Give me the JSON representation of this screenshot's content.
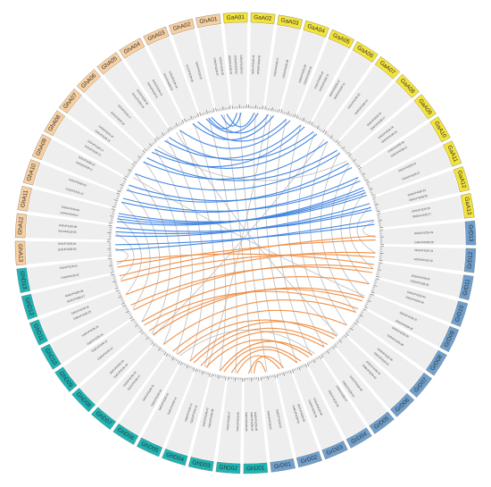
{
  "colors": {
    "ga": "#f3e33a",
    "gh_a": "#f7cfa0",
    "gh_d": "#1fb4b4",
    "gr": "#6f9fcc",
    "band": "#eeeeee",
    "link_blue": "#3b82e0",
    "link_orange": "#f08a3e",
    "link_gray": "#bcbcbc"
  },
  "chromosomes": [
    {
      "id": "GaA01",
      "group": "ga"
    },
    {
      "id": "GaA02",
      "group": "ga"
    },
    {
      "id": "GaA03",
      "group": "ga"
    },
    {
      "id": "GaA04",
      "group": "ga"
    },
    {
      "id": "GaA05",
      "group": "ga"
    },
    {
      "id": "GaA06",
      "group": "ga"
    },
    {
      "id": "GaA07",
      "group": "ga"
    },
    {
      "id": "GaA08",
      "group": "ga"
    },
    {
      "id": "GaA09",
      "group": "ga"
    },
    {
      "id": "GaA10",
      "group": "ga"
    },
    {
      "id": "GaA11",
      "group": "ga"
    },
    {
      "id": "GaA12",
      "group": "ga"
    },
    {
      "id": "GaA13",
      "group": "ga"
    },
    {
      "id": "GrD13",
      "group": "gr"
    },
    {
      "id": "GrD12",
      "group": "gr"
    },
    {
      "id": "GrD11",
      "group": "gr"
    },
    {
      "id": "GrD10",
      "group": "gr"
    },
    {
      "id": "GrD09",
      "group": "gr"
    },
    {
      "id": "GrD08",
      "group": "gr"
    },
    {
      "id": "GrD07",
      "group": "gr"
    },
    {
      "id": "GrD06",
      "group": "gr"
    },
    {
      "id": "GrD05",
      "group": "gr"
    },
    {
      "id": "GrD04",
      "group": "gr"
    },
    {
      "id": "GrD03",
      "group": "gr"
    },
    {
      "id": "GrD02",
      "group": "gr"
    },
    {
      "id": "GrD01",
      "group": "gr"
    },
    {
      "id": "GhD01",
      "group": "gh_d"
    },
    {
      "id": "GhD02",
      "group": "gh_d"
    },
    {
      "id": "GhD03",
      "group": "gh_d"
    },
    {
      "id": "GhD04",
      "group": "gh_d"
    },
    {
      "id": "GhD05",
      "group": "gh_d"
    },
    {
      "id": "GhD06",
      "group": "gh_d"
    },
    {
      "id": "GhD07",
      "group": "gh_d"
    },
    {
      "id": "GhD08",
      "group": "gh_d"
    },
    {
      "id": "GhD09",
      "group": "gh_d"
    },
    {
      "id": "GhD10",
      "group": "gh_d"
    },
    {
      "id": "GhD11",
      "group": "gh_d"
    },
    {
      "id": "GhD12",
      "group": "gh_d"
    },
    {
      "id": "GhD13",
      "group": "gh_d"
    },
    {
      "id": "GhA13",
      "group": "gh_a"
    },
    {
      "id": "GhA12",
      "group": "gh_a"
    },
    {
      "id": "GhA11",
      "group": "gh_a"
    },
    {
      "id": "GhA10",
      "group": "gh_a"
    },
    {
      "id": "GhA09",
      "group": "gh_a"
    },
    {
      "id": "GhA08",
      "group": "gh_a"
    },
    {
      "id": "GhA07",
      "group": "gh_a"
    },
    {
      "id": "GhA06",
      "group": "gh_a"
    },
    {
      "id": "GhA05",
      "group": "gh_a"
    },
    {
      "id": "GhA04",
      "group": "gh_a"
    },
    {
      "id": "GhA03",
      "group": "gh_a"
    },
    {
      "id": "GhA02",
      "group": "gh_a"
    },
    {
      "id": "GhA01",
      "group": "gh_a"
    }
  ],
  "gene_labels": [
    "GhDUF4228-01",
    "GhDUF4228-02",
    "GhDUF4228-03",
    "GhDUF4228-04",
    "GhDUF4228-05",
    "GhDUF4228-06",
    "GhDUF4228-07",
    "GhDUF4228-08",
    "GhDUF4228-09",
    "GhDUF4228-10",
    "GhDUF4228-11",
    "GhDUF4228-12",
    "GhDUF4228-13",
    "GhDUF4228-14",
    "GhDUF4228-15",
    "GhDUF4228-16",
    "GhDUF4228-17",
    "GhDUF4228-18",
    "GhDUF4228-19",
    "GhDUF4228-20",
    "GhDUF4228-21",
    "GhDUF4228-22",
    "GhDUF4228-23",
    "GhDUF4228-24",
    "GhDUF4228-25",
    "GhDUF4228-26",
    "GhDUF4228-27",
    "GhDUF4228-28",
    "GhDUF4228-29",
    "GhDUF4228-30",
    "GhDUF4228-31",
    "GhDUF4228-32",
    "GhDUF4228-33",
    "GhDUF4228-34",
    "GhDUF4228-35",
    "GhDUF4228-36",
    "GhDUF4228-37",
    "GhDUF4228-38",
    "GhDUF4228-39",
    "GhDUF4228-40",
    "GhDUF4228-41",
    "GhDUF4228-42",
    "GhDUF4228-43",
    "GhDUF4228-44",
    "GhDUF4228-45",
    "GhDUF4228-46",
    "GhDUF4228-47",
    "GhDUF4228-48",
    "GhDUF4228-49",
    "GhDUF4228-50",
    "GaDUF4228-01",
    "GaDUF4228-02",
    "GaDUF4228-03",
    "GaDUF4228-04",
    "GaDUF4228-05",
    "GaDUF4228-06",
    "GaDUF4228-07",
    "GaDUF4228-08",
    "GaDUF4228-09",
    "GaDUF4228-10",
    "GaDUF4228-11",
    "GaDUF4228-12",
    "GaDUF4228-13",
    "GaDUF4228-14",
    "GaDUF4228-15",
    "GaDUF4228-16",
    "GaDUF4228-17",
    "GaDUF4228-18",
    "GaDUF4228-19",
    "GaDUF4228-20",
    "GaDUF4228-21",
    "GaDUF4228-22",
    "GaDUF4228-23",
    "GaDUF4228-24",
    "GaDUF4228-25",
    "GaDUF4228-26",
    "GaDUF4228-27",
    "GaDUF4228-28",
    "GrDUF4228-01",
    "GrDUF4228-02",
    "GrDUF4228-03",
    "GrDUF4228-04",
    "GrDUF4228-05",
    "GrDUF4228-06",
    "GrDUF4228-07",
    "GrDUF4228-08",
    "GrDUF4228-09",
    "GrDUF4228-10",
    "GrDUF4228-11",
    "GrDUF4228-12",
    "GrDUF4228-13",
    "GrDUF4228-14",
    "GrDUF4228-15",
    "GrDUF4228-16",
    "GrDUF4228-17",
    "GrDUF4228-18",
    "GrDUF4228-19",
    "GrDUF4228-20",
    "GrDUF4228-21",
    "GrDUF4228-22",
    "GrDUF4228-23",
    "GrDUF4228-24",
    "GrDUF4228-25",
    "GrDUF4228-26",
    "GrDUF4228-27",
    "GrDUF4228-28"
  ],
  "links": [
    {
      "type": "blue",
      "from": [
        "GhA01",
        0.3
      ],
      "to": [
        "GaA01",
        0.6
      ]
    },
    {
      "type": "blue",
      "from": [
        "GhA01",
        0.7
      ],
      "to": [
        "GaA02",
        0.4
      ]
    },
    {
      "type": "blue",
      "from": [
        "GhA02",
        0.3
      ],
      "to": [
        "GaA02",
        0.7
      ]
    },
    {
      "type": "blue",
      "from": [
        "GhA02",
        0.7
      ],
      "to": [
        "GaA03",
        0.3
      ]
    },
    {
      "type": "blue",
      "from": [
        "GhA03",
        0.4
      ],
      "to": [
        "GaA03",
        0.7
      ]
    },
    {
      "type": "blue",
      "from": [
        "GhA03",
        0.8
      ],
      "to": [
        "GaA04",
        0.5
      ]
    },
    {
      "type": "blue",
      "from": [
        "GhA04",
        0.5
      ],
      "to": [
        "GaA04",
        0.8
      ]
    },
    {
      "type": "blue",
      "from": [
        "GhA05",
        0.3
      ],
      "to": [
        "GaA05",
        0.5
      ]
    },
    {
      "type": "blue",
      "from": [
        "GhA05",
        0.7
      ],
      "to": [
        "GaA06",
        0.4
      ]
    },
    {
      "type": "blue",
      "from": [
        "GhA06",
        0.5
      ],
      "to": [
        "GaA06",
        0.7
      ]
    },
    {
      "type": "blue",
      "from": [
        "GhA07",
        0.4
      ],
      "to": [
        "GaA07",
        0.5
      ]
    },
    {
      "type": "blue",
      "from": [
        "GhA07",
        0.8
      ],
      "to": [
        "GaA08",
        0.3
      ]
    },
    {
      "type": "blue",
      "from": [
        "GhA08",
        0.5
      ],
      "to": [
        "GaA08",
        0.6
      ]
    },
    {
      "type": "blue",
      "from": [
        "GhA09",
        0.3
      ],
      "to": [
        "GaA09",
        0.4
      ]
    },
    {
      "type": "blue",
      "from": [
        "GhA09",
        0.7
      ],
      "to": [
        "GaA09",
        0.8
      ]
    },
    {
      "type": "blue",
      "from": [
        "GhA10",
        0.5
      ],
      "to": [
        "GaA10",
        0.5
      ]
    },
    {
      "type": "blue",
      "from": [
        "GhA11",
        0.2
      ],
      "to": [
        "GaA11",
        0.2
      ]
    },
    {
      "type": "blue",
      "from": [
        "GhA11",
        0.4
      ],
      "to": [
        "GaA11",
        0.4
      ]
    },
    {
      "type": "blue",
      "from": [
        "GhA11",
        0.6
      ],
      "to": [
        "GaA11",
        0.6
      ]
    },
    {
      "type": "blue",
      "from": [
        "GhA11",
        0.8
      ],
      "to": [
        "GaA11",
        0.8
      ]
    },
    {
      "type": "blue",
      "from": [
        "GhA12",
        0.3
      ],
      "to": [
        "GaA12",
        0.3
      ]
    },
    {
      "type": "blue",
      "from": [
        "GhA12",
        0.6
      ],
      "to": [
        "GaA12",
        0.6
      ]
    },
    {
      "type": "blue",
      "from": [
        "GhA12",
        0.9
      ],
      "to": [
        "GaA12",
        0.8
      ]
    },
    {
      "type": "blue",
      "from": [
        "GhA13",
        0.4
      ],
      "to": [
        "GaA13",
        0.4
      ]
    },
    {
      "type": "blue",
      "from": [
        "GhA13",
        0.8
      ],
      "to": [
        "GaA13",
        0.7
      ]
    },
    {
      "type": "blue",
      "from": [
        "GhA02",
        0.5
      ],
      "to": [
        "GaA01",
        0.3
      ]
    },
    {
      "type": "blue",
      "from": [
        "GhA06",
        0.2
      ],
      "to": [
        "GaA05",
        0.8
      ]
    },
    {
      "type": "blue",
      "from": [
        "GhA10",
        0.8
      ],
      "to": [
        "GaA10",
        0.8
      ]
    },
    {
      "type": "orange",
      "from": [
        "GhD01",
        0.3
      ],
      "to": [
        "GrD01",
        0.6
      ]
    },
    {
      "type": "orange",
      "from": [
        "GhD01",
        0.7
      ],
      "to": [
        "GrD02",
        0.4
      ]
    },
    {
      "type": "orange",
      "from": [
        "GhD02",
        0.4
      ],
      "to": [
        "GrD02",
        0.7
      ]
    },
    {
      "type": "orange",
      "from": [
        "GhD02",
        0.8
      ],
      "to": [
        "GrD03",
        0.5
      ]
    },
    {
      "type": "orange",
      "from": [
        "GhD03",
        0.5
      ],
      "to": [
        "GrD04",
        0.4
      ]
    },
    {
      "type": "orange",
      "from": [
        "GhD04",
        0.4
      ],
      "to": [
        "GrD04",
        0.7
      ]
    },
    {
      "type": "orange",
      "from": [
        "GhD04",
        0.8
      ],
      "to": [
        "GrD05",
        0.5
      ]
    },
    {
      "type": "orange",
      "from": [
        "GhD05",
        0.5
      ],
      "to": [
        "GrD06",
        0.4
      ]
    },
    {
      "type": "orange",
      "from": [
        "GhD06",
        0.4
      ],
      "to": [
        "GrD06",
        0.7
      ]
    },
    {
      "type": "orange",
      "from": [
        "GhD06",
        0.8
      ],
      "to": [
        "GrD07",
        0.5
      ]
    },
    {
      "type": "orange",
      "from": [
        "GhD07",
        0.5
      ],
      "to": [
        "GrD08",
        0.5
      ]
    },
    {
      "type": "orange",
      "from": [
        "GhD08",
        0.4
      ],
      "to": [
        "GrD09",
        0.4
      ]
    },
    {
      "type": "orange",
      "from": [
        "GhD08",
        0.8
      ],
      "to": [
        "GrD09",
        0.7
      ]
    },
    {
      "type": "orange",
      "from": [
        "GhD09",
        0.5
      ],
      "to": [
        "GrD10",
        0.5
      ]
    },
    {
      "type": "orange",
      "from": [
        "GhD10",
        0.4
      ],
      "to": [
        "GrD11",
        0.5
      ]
    },
    {
      "type": "orange",
      "from": [
        "GhD10",
        0.8
      ],
      "to": [
        "GrD11",
        0.8
      ]
    },
    {
      "type": "orange",
      "from": [
        "GhD11",
        0.5
      ],
      "to": [
        "GrD12",
        0.5
      ]
    },
    {
      "type": "orange",
      "from": [
        "GhD12",
        0.4
      ],
      "to": [
        "GrD12",
        0.8
      ]
    },
    {
      "type": "orange",
      "from": [
        "GhD12",
        0.8
      ],
      "to": [
        "GrD13",
        0.4
      ]
    },
    {
      "type": "orange",
      "from": [
        "GhD13",
        0.3
      ],
      "to": [
        "GrD13",
        0.7
      ]
    },
    {
      "type": "orange",
      "from": [
        "GhD13",
        0.7
      ],
      "to": [
        "GrD11",
        0.2
      ]
    },
    {
      "type": "orange",
      "from": [
        "GhD09",
        0.2
      ],
      "to": [
        "GrD08",
        0.2
      ]
    },
    {
      "type": "orange",
      "from": [
        "GhD05",
        0.2
      ],
      "to": [
        "GrD05",
        0.2
      ]
    },
    {
      "type": "orange",
      "from": [
        "GhD03",
        0.2
      ],
      "to": [
        "GrD03",
        0.2
      ]
    },
    {
      "type": "gray",
      "from": [
        "GhA01",
        0.5
      ],
      "to": [
        "GhD01",
        0.5
      ]
    },
    {
      "type": "gray",
      "from": [
        "GhA02",
        0.5
      ],
      "to": [
        "GhD02",
        0.5
      ]
    },
    {
      "type": "gray",
      "from": [
        "GhA03",
        0.5
      ],
      "to": [
        "GhD03",
        0.5
      ]
    },
    {
      "type": "gray",
      "from": [
        "GhA04",
        0.5
      ],
      "to": [
        "GhD04",
        0.5
      ]
    },
    {
      "type": "gray",
      "from": [
        "GhA05",
        0.5
      ],
      "to": [
        "GhD05",
        0.5
      ]
    },
    {
      "type": "gray",
      "from": [
        "GhA06",
        0.5
      ],
      "to": [
        "GhD06",
        0.5
      ]
    },
    {
      "type": "gray",
      "from": [
        "GhA07",
        0.5
      ],
      "to": [
        "GhD07",
        0.5
      ]
    },
    {
      "type": "gray",
      "from": [
        "GhA08",
        0.5
      ],
      "to": [
        "GhD08",
        0.5
      ]
    },
    {
      "type": "gray",
      "from": [
        "GhA09",
        0.5
      ],
      "to": [
        "GhD09",
        0.5
      ]
    },
    {
      "type": "gray",
      "from": [
        "GhA10",
        0.5
      ],
      "to": [
        "GhD10",
        0.5
      ]
    },
    {
      "type": "gray",
      "from": [
        "GhA11",
        0.5
      ],
      "to": [
        "GhD11",
        0.5
      ]
    },
    {
      "type": "gray",
      "from": [
        "GhA12",
        0.5
      ],
      "to": [
        "GhD12",
        0.5
      ]
    },
    {
      "type": "gray",
      "from": [
        "GhA13",
        0.5
      ],
      "to": [
        "GhD13",
        0.5
      ]
    },
    {
      "type": "gray",
      "from": [
        "GaA01",
        0.5
      ],
      "to": [
        "GrD01",
        0.5
      ]
    },
    {
      "type": "gray",
      "from": [
        "GaA02",
        0.5
      ],
      "to": [
        "GrD02",
        0.5
      ]
    },
    {
      "type": "gray",
      "from": [
        "GaA03",
        0.5
      ],
      "to": [
        "GrD03",
        0.5
      ]
    },
    {
      "type": "gray",
      "from": [
        "GaA04",
        0.5
      ],
      "to": [
        "GrD04",
        0.5
      ]
    },
    {
      "type": "gray",
      "from": [
        "GaA05",
        0.5
      ],
      "to": [
        "GrD05",
        0.5
      ]
    },
    {
      "type": "gray",
      "from": [
        "GaA06",
        0.5
      ],
      "to": [
        "GrD06",
        0.5
      ]
    },
    {
      "type": "gray",
      "from": [
        "GaA07",
        0.5
      ],
      "to": [
        "GrD07",
        0.5
      ]
    },
    {
      "type": "gray",
      "from": [
        "GaA08",
        0.5
      ],
      "to": [
        "GrD08",
        0.5
      ]
    },
    {
      "type": "gray",
      "from": [
        "GaA09",
        0.5
      ],
      "to": [
        "GrD09",
        0.5
      ]
    },
    {
      "type": "gray",
      "from": [
        "GaA10",
        0.5
      ],
      "to": [
        "GrD10",
        0.5
      ]
    },
    {
      "type": "gray",
      "from": [
        "GaA11",
        0.5
      ],
      "to": [
        "GrD11",
        0.5
      ]
    },
    {
      "type": "gray",
      "from": [
        "GaA12",
        0.5
      ],
      "to": [
        "GrD12",
        0.5
      ]
    },
    {
      "type": "gray",
      "from": [
        "GaA13",
        0.5
      ],
      "to": [
        "GrD13",
        0.5
      ]
    },
    {
      "type": "gray",
      "from": [
        "GhA04",
        0.2
      ],
      "to": [
        "GrD06",
        0.3
      ]
    },
    {
      "type": "gray",
      "from": [
        "GhA08",
        0.2
      ],
      "to": [
        "GrD09",
        0.3
      ]
    },
    {
      "type": "gray",
      "from": [
        "GaA07",
        0.2
      ],
      "to": [
        "GhD08",
        0.3
      ]
    },
    {
      "type": "gray",
      "from": [
        "GaA03",
        0.2
      ],
      "to": [
        "GhD04",
        0.3
      ]
    },
    {
      "type": "gray",
      "from": [
        "GhA06",
        0.8
      ],
      "to": [
        "GaA09",
        0.2
      ]
    },
    {
      "type": "gray",
      "from": [
        "GhD06",
        0.2
      ],
      "to": [
        "GrD04",
        0.2
      ]
    }
  ]
}
